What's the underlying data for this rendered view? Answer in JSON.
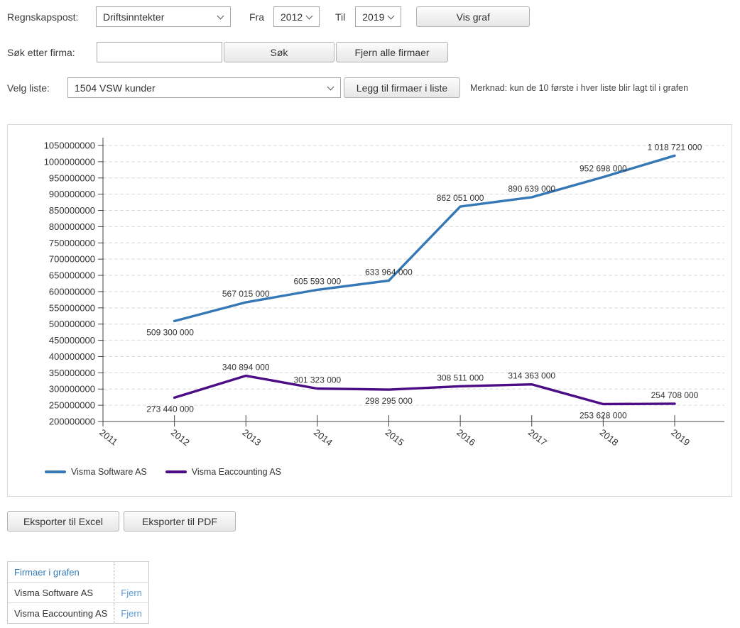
{
  "controls": {
    "account_row": {
      "label": "Regnskapspost:",
      "account_value": "Driftsinntekter",
      "from_label": "Fra",
      "from_value": "2012",
      "to_label": "Til",
      "to_value": "2019",
      "show_graph_button": "Vis graf"
    },
    "search_row": {
      "label": "Søk etter firma:",
      "search_value": "",
      "search_button": "Søk",
      "clear_all_button": "Fjern alle firmaer"
    },
    "list_row": {
      "label": "Velg liste:",
      "list_value": "1504 VSW kunder",
      "add_button": "Legg til firmaer i liste",
      "note": "Merknad: kun de 10 første i hver liste blir lagt til i grafen"
    }
  },
  "chart_data": {
    "type": "line",
    "x": [
      2012,
      2013,
      2014,
      2015,
      2016,
      2017,
      2018,
      2019
    ],
    "xaxis_ticks": [
      "2011",
      "2012",
      "2013",
      "2014",
      "2015",
      "2016",
      "2017",
      "2018",
      "2019"
    ],
    "ylim": [
      200000000,
      1050000000
    ],
    "ytick_step": 50000000,
    "grid": true,
    "legend_position": "bottom-left",
    "series": [
      {
        "name": "Visma Software AS",
        "color": "#3578b5",
        "values": [
          509300000,
          567015000,
          605593000,
          633964000,
          862051000,
          890639000,
          952698000,
          1018721000
        ],
        "label_positions": [
          "below",
          "above",
          "above",
          "above",
          "above",
          "above",
          "above",
          "above"
        ]
      },
      {
        "name": "Visma Eaccounting AS",
        "color": "#4b0c85",
        "values": [
          273440000,
          340894000,
          301323000,
          298295000,
          308511000,
          314363000,
          253628000,
          254708000
        ],
        "label_positions": [
          "below",
          "above",
          "above",
          "below",
          "above",
          "above",
          "below",
          "above"
        ]
      }
    ]
  },
  "export": {
    "excel_button": "Eksporter til Excel",
    "pdf_button": "Eksporter til PDF"
  },
  "companies_table": {
    "header": "Firmaer i grafen",
    "rows": [
      {
        "name": "Visma Software AS",
        "action": "Fjern"
      },
      {
        "name": "Visma Eaccounting AS",
        "action": "Fjern"
      }
    ]
  }
}
